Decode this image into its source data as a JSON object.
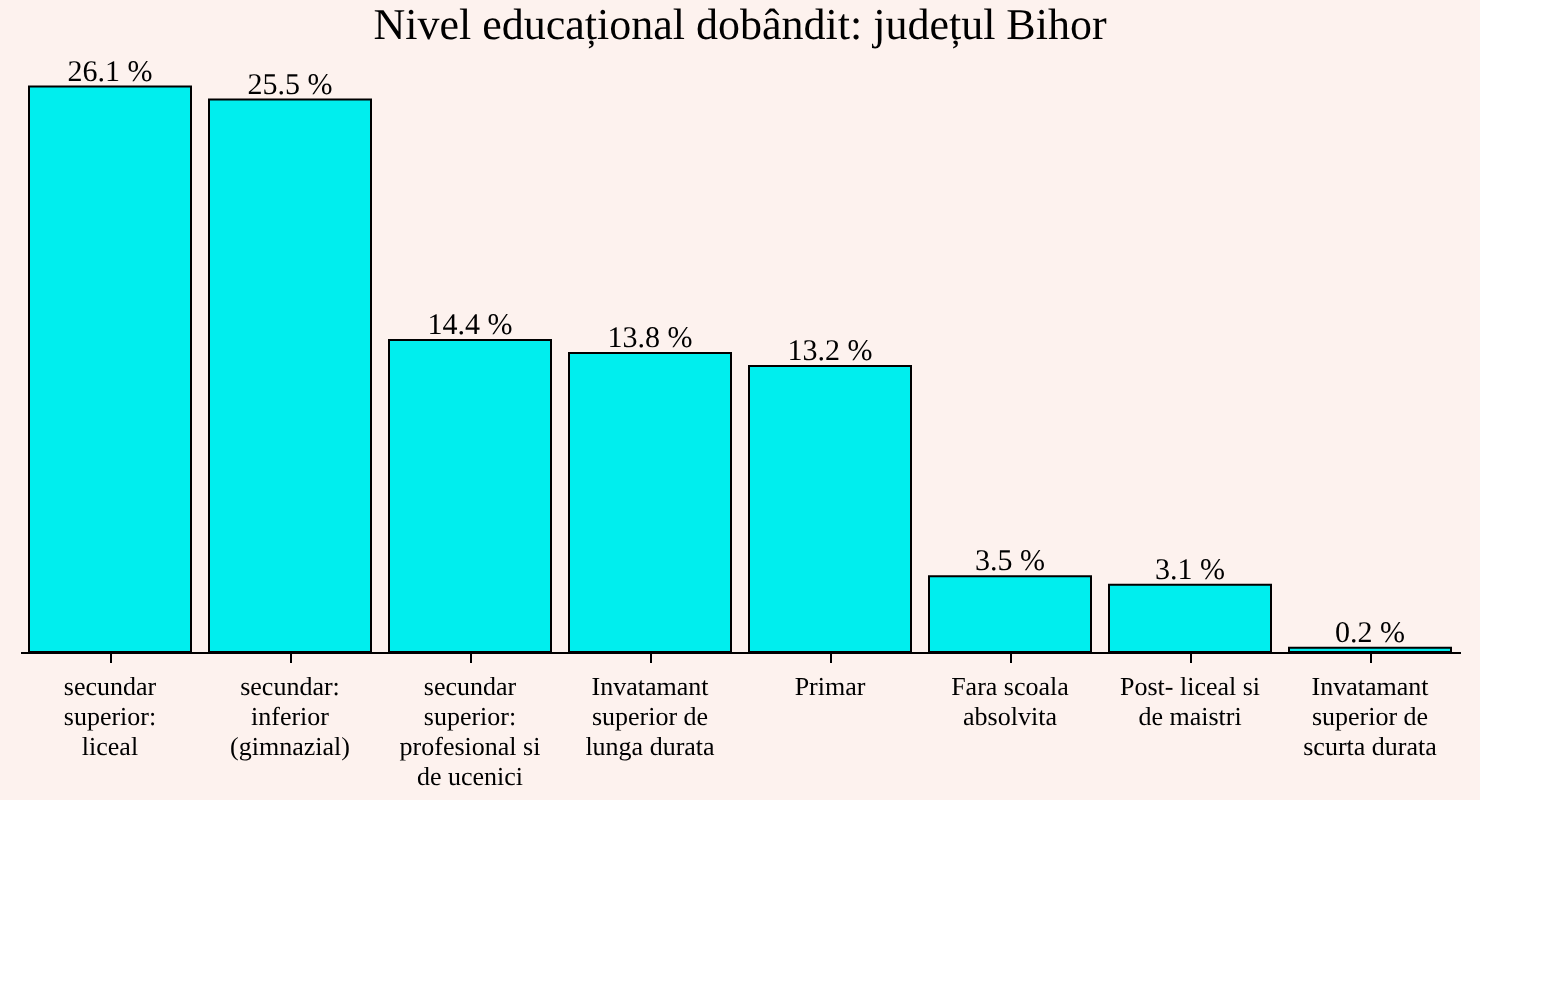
{
  "chart_data": {
    "type": "bar",
    "title": "Nivel educațional dobândit: județul Bihor",
    "categories": [
      "secundar superior: liceal",
      "secundar: inferior (gimnazial)",
      "secundar superior: profesional si de ucenici",
      "Invatamant superior de lunga durata",
      "Primar",
      "Fara scoala absolvita",
      "Post- liceal si de maistri",
      "Invatamant superior de scurta durata"
    ],
    "values": [
      26.1,
      25.5,
      14.4,
      13.8,
      13.2,
      3.5,
      3.1,
      0.2
    ],
    "value_labels": [
      "26.1 %",
      "25.5 %",
      "14.4 %",
      "13.8 %",
      "13.2 %",
      "3.5 %",
      "3.1 %",
      "0.2 %"
    ],
    "color": "#00eeee",
    "grid": false,
    "tick_labels": "x"
  }
}
